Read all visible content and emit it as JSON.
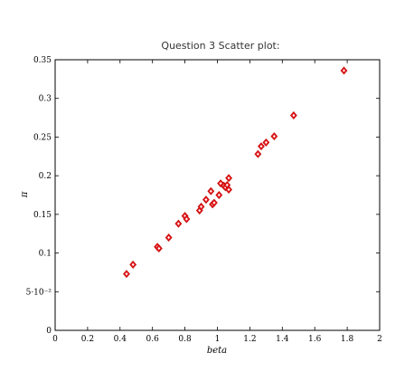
{
  "chart_data": {
    "type": "scatter",
    "title": "Question 3 Scatter plot:",
    "xlabel": "beta",
    "ylabel": "π",
    "xlim": [
      0,
      2
    ],
    "ylim": [
      0,
      0.35
    ],
    "x_ticks": [
      0,
      0.2,
      0.4,
      0.6,
      0.8,
      1,
      1.2,
      1.4,
      1.6,
      1.8,
      2
    ],
    "x_tick_labels": [
      "0",
      "0.2",
      "0.4",
      "0.6",
      "0.8",
      "1",
      "1.2",
      "1.4",
      "1.6",
      "1.8",
      "2"
    ],
    "y_ticks": [
      0,
      0.05,
      0.1,
      0.15,
      0.2,
      0.25,
      0.3,
      0.35
    ],
    "y_tick_labels": [
      "0",
      "5·10⁻²",
      "0.1",
      "0.15",
      "0.2",
      "0.25",
      "0.3",
      "0.35"
    ],
    "marker_color": "#e31a1c",
    "series": [
      {
        "x": [
          0.44,
          0.48,
          0.63,
          0.64,
          0.7,
          0.76,
          0.8,
          0.81,
          0.89,
          0.9,
          0.93,
          0.96,
          0.97,
          0.98,
          1.01,
          1.02,
          1.04,
          1.05,
          1.06,
          1.07,
          1.07,
          1.25,
          1.27,
          1.3,
          1.35,
          1.47,
          1.78
        ],
        "y": [
          0.073,
          0.085,
          0.108,
          0.106,
          0.12,
          0.138,
          0.148,
          0.144,
          0.155,
          0.16,
          0.169,
          0.18,
          0.163,
          0.165,
          0.175,
          0.19,
          0.187,
          0.185,
          0.188,
          0.197,
          0.182,
          0.228,
          0.238,
          0.243,
          0.251,
          0.278,
          0.336
        ]
      }
    ]
  }
}
